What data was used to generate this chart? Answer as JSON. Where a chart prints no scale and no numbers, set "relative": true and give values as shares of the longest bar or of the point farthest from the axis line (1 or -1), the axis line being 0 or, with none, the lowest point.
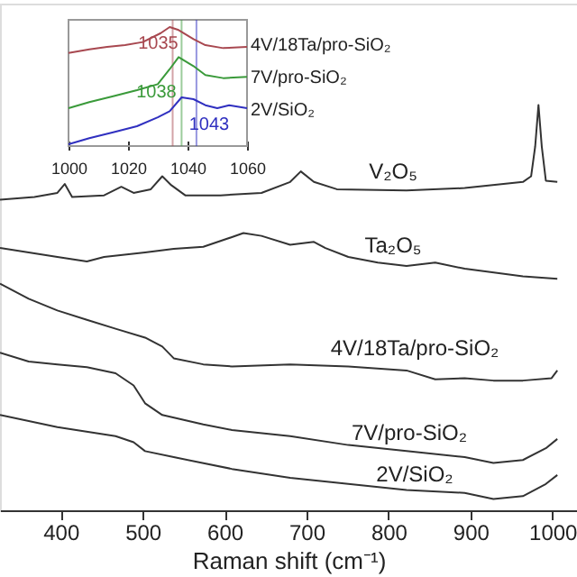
{
  "chart_data": [
    {
      "type": "line",
      "relative": true,
      "xlabel": "Raman shift (cm⁻¹)",
      "xlim": [
        326,
        1030
      ],
      "xticks": [
        400,
        500,
        600,
        700,
        800,
        900,
        1000
      ],
      "grid": false,
      "series": [
        {
          "name": "V₂O₅",
          "color": "#333333",
          "x": [
            326,
            368,
            396,
            405,
            414,
            453,
            474,
            489,
            510,
            524,
            535,
            552,
            595,
            645,
            680,
            693,
            709,
            737,
            822,
            893,
            964,
            974,
            979,
            983,
            987,
            992,
            1006
          ],
          "values": [
            0.766,
            0.773,
            0.783,
            0.805,
            0.773,
            0.777,
            0.798,
            0.783,
            0.792,
            0.824,
            0.802,
            0.777,
            0.777,
            0.783,
            0.81,
            0.836,
            0.81,
            0.792,
            0.789,
            0.795,
            0.81,
            0.824,
            0.898,
            1.0,
            0.898,
            0.813,
            0.81
          ]
        },
        {
          "name": "Ta₂O₅",
          "color": "#333333",
          "x": [
            326,
            361,
            396,
            432,
            453,
            503,
            538,
            574,
            609,
            623,
            645,
            680,
            709,
            723,
            751,
            787,
            822,
            857,
            893,
            964,
            1006
          ],
          "values": [
            0.647,
            0.636,
            0.625,
            0.614,
            0.625,
            0.636,
            0.645,
            0.65,
            0.674,
            0.684,
            0.677,
            0.655,
            0.662,
            0.647,
            0.625,
            0.611,
            0.603,
            0.611,
            0.596,
            0.577,
            0.571
          ]
        },
        {
          "name": "4V/18Ta/pro-SiO₂",
          "color": "#333333",
          "x": [
            326,
            361,
            396,
            432,
            467,
            503,
            524,
            538,
            574,
            609,
            680,
            751,
            822,
            857,
            893,
            928,
            964,
            999,
            1006
          ],
          "values": [
            0.559,
            0.522,
            0.493,
            0.47,
            0.448,
            0.426,
            0.404,
            0.375,
            0.36,
            0.355,
            0.36,
            0.355,
            0.345,
            0.323,
            0.326,
            0.32,
            0.32,
            0.326,
            0.345
          ]
        },
        {
          "name": "7V/pro-SiO₂",
          "color": "#333333",
          "x": [
            326,
            361,
            396,
            432,
            467,
            489,
            503,
            524,
            574,
            609,
            680,
            751,
            822,
            893,
            928,
            964,
            992,
            1006
          ],
          "values": [
            0.389,
            0.367,
            0.36,
            0.353,
            0.338,
            0.308,
            0.264,
            0.235,
            0.212,
            0.198,
            0.183,
            0.161,
            0.146,
            0.131,
            0.117,
            0.124,
            0.153,
            0.176
          ]
        },
        {
          "name": "2V/SiO₂",
          "color": "#333333",
          "x": [
            326,
            396,
            467,
            489,
            503,
            538,
            609,
            680,
            751,
            822,
            893,
            928,
            964,
            992,
            1006
          ],
          "values": [
            0.235,
            0.205,
            0.183,
            0.168,
            0.146,
            0.131,
            0.102,
            0.08,
            0.065,
            0.05,
            0.043,
            0.028,
            0.035,
            0.065,
            0.087
          ]
        }
      ]
    },
    {
      "type": "line",
      "relative": true,
      "xlim": [
        1000,
        1060
      ],
      "xticks": [
        1000,
        1020,
        1040,
        1060
      ],
      "grid": false,
      "series": [
        {
          "name": "4V/18Ta/pro-SiO₂",
          "color": "#a84850",
          "x": [
            1000,
            1007,
            1013,
            1019,
            1025,
            1031,
            1034,
            1037,
            1042,
            1046,
            1052,
            1060
          ],
          "values": [
            0.783,
            0.813,
            0.833,
            0.848,
            0.874,
            0.949,
            1.0,
            0.975,
            0.899,
            0.848,
            0.823,
            0.833
          ]
        },
        {
          "name": "7V/pro-SiO₂",
          "color": "#3a9a3a",
          "x": [
            1000,
            1007,
            1015,
            1023,
            1030,
            1034,
            1037,
            1042,
            1046,
            1052,
            1060
          ],
          "values": [
            0.318,
            0.369,
            0.419,
            0.47,
            0.52,
            0.646,
            0.747,
            0.672,
            0.596,
            0.571,
            0.581
          ]
        },
        {
          "name": "2V/SiO₂",
          "color": "#3030c0",
          "x": [
            1000,
            1007,
            1015,
            1023,
            1030,
            1034,
            1038,
            1042,
            1046,
            1050,
            1054,
            1060
          ],
          "values": [
            0.015,
            0.066,
            0.116,
            0.167,
            0.242,
            0.293,
            0.409,
            0.394,
            0.343,
            0.318,
            0.343,
            0.318
          ]
        }
      ],
      "ref_lines": [
        {
          "axis": "x",
          "value": 1035,
          "label": "1035",
          "color": "#a84850"
        },
        {
          "axis": "x",
          "value": 1038,
          "label": "1038",
          "color": "#3a9a3a"
        },
        {
          "axis": "x",
          "value": 1043,
          "label": "1043",
          "color": "#3030c0"
        }
      ]
    }
  ]
}
